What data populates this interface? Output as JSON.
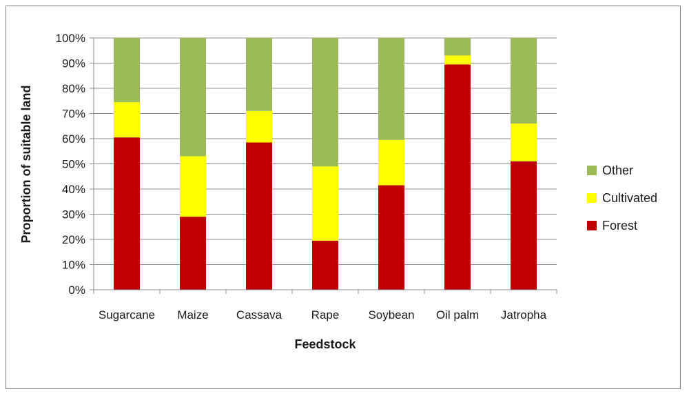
{
  "chart_data": {
    "type": "bar",
    "stacked": true,
    "categories": [
      "Sugarcane",
      "Maize",
      "Cassava",
      "Rape",
      "Soybean",
      "Oil palm",
      "Jatropha"
    ],
    "series": [
      {
        "name": "Forest",
        "color": "#c00000",
        "values": [
          60.5,
          29,
          58.5,
          19.5,
          41.5,
          89.5,
          51
        ]
      },
      {
        "name": "Cultivated",
        "color": "#ffff00",
        "values": [
          14,
          24,
          12.5,
          29.5,
          18,
          3.5,
          15
        ]
      },
      {
        "name": "Other",
        "color": "#9bbb59",
        "values": [
          25.5,
          47,
          29,
          51,
          40.5,
          7,
          34
        ]
      }
    ],
    "legend_order": [
      "Other",
      "Cultivated",
      "Forest"
    ],
    "legend_position": "right",
    "xlabel": "Feedstock",
    "ylabel": "Proportion of suitable land",
    "ylim": [
      0,
      100
    ],
    "yticks": [
      "0%",
      "10%",
      "20%",
      "30%",
      "40%",
      "50%",
      "60%",
      "70%",
      "80%",
      "90%",
      "100%"
    ],
    "grid": "horizontal"
  }
}
